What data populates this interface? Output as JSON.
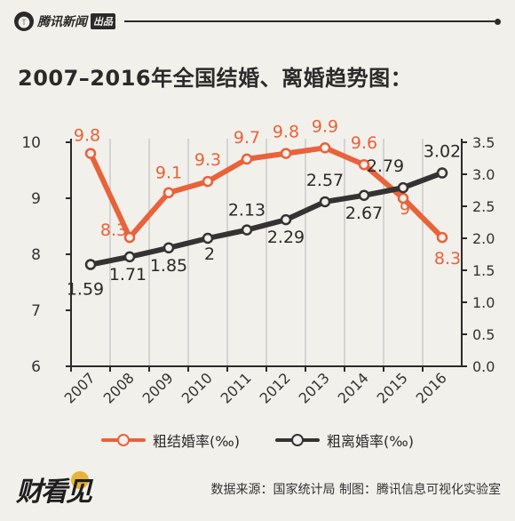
{
  "header": {
    "logo_mark": "🅣",
    "logo_text": "腾讯新闻",
    "logo_tag": "出品"
  },
  "title": "2007–2016年全国结婚、离婚趋势图：",
  "legend": {
    "marriage": "粗结婚率(‰)",
    "divorce": "粗离婚率(‰)"
  },
  "footer": {
    "logo_text": "财看见",
    "source": "数据来源：国家统计局  制图：腾讯信息可视化实验室"
  },
  "colors": {
    "marriage": "#e8623a",
    "divorce": "#333333",
    "grid": "#b8b8b8",
    "background": "#f2f0eb"
  },
  "chart_data": {
    "type": "line",
    "x": [
      "2007",
      "2008",
      "2009",
      "2010",
      "2011",
      "2012",
      "2013",
      "2014",
      "2015",
      "2016"
    ],
    "series": [
      {
        "name": "粗结婚率(‰)",
        "axis": "left",
        "values": [
          9.8,
          8.3,
          9.1,
          9.3,
          9.7,
          9.8,
          9.9,
          9.6,
          9,
          8.3
        ],
        "labels": [
          "9.8",
          "8.3",
          "9.1",
          "9.3",
          "9.7",
          "9.8",
          "9.9",
          "9.6",
          "9",
          "8.3"
        ]
      },
      {
        "name": "粗离婚率(‰)",
        "axis": "right",
        "values": [
          1.59,
          1.71,
          1.85,
          2,
          2.13,
          2.29,
          2.57,
          2.67,
          2.79,
          3.02
        ],
        "labels": [
          "1.59",
          "1.71",
          "1.85",
          "2",
          "2.13",
          "2.29",
          "2.57",
          "2.67",
          "2.79",
          "3.02"
        ]
      }
    ],
    "y_left": {
      "min": 6,
      "max": 10,
      "ticks": [
        "6",
        "7",
        "8",
        "9",
        "10"
      ]
    },
    "y_right": {
      "min": 0,
      "max": 3.5,
      "ticks": [
        "0.0",
        "0.5",
        "1.0",
        "1.5",
        "2.0",
        "2.5",
        "3.0",
        "3.5"
      ]
    },
    "grid": true,
    "legend_position": "bottom"
  }
}
